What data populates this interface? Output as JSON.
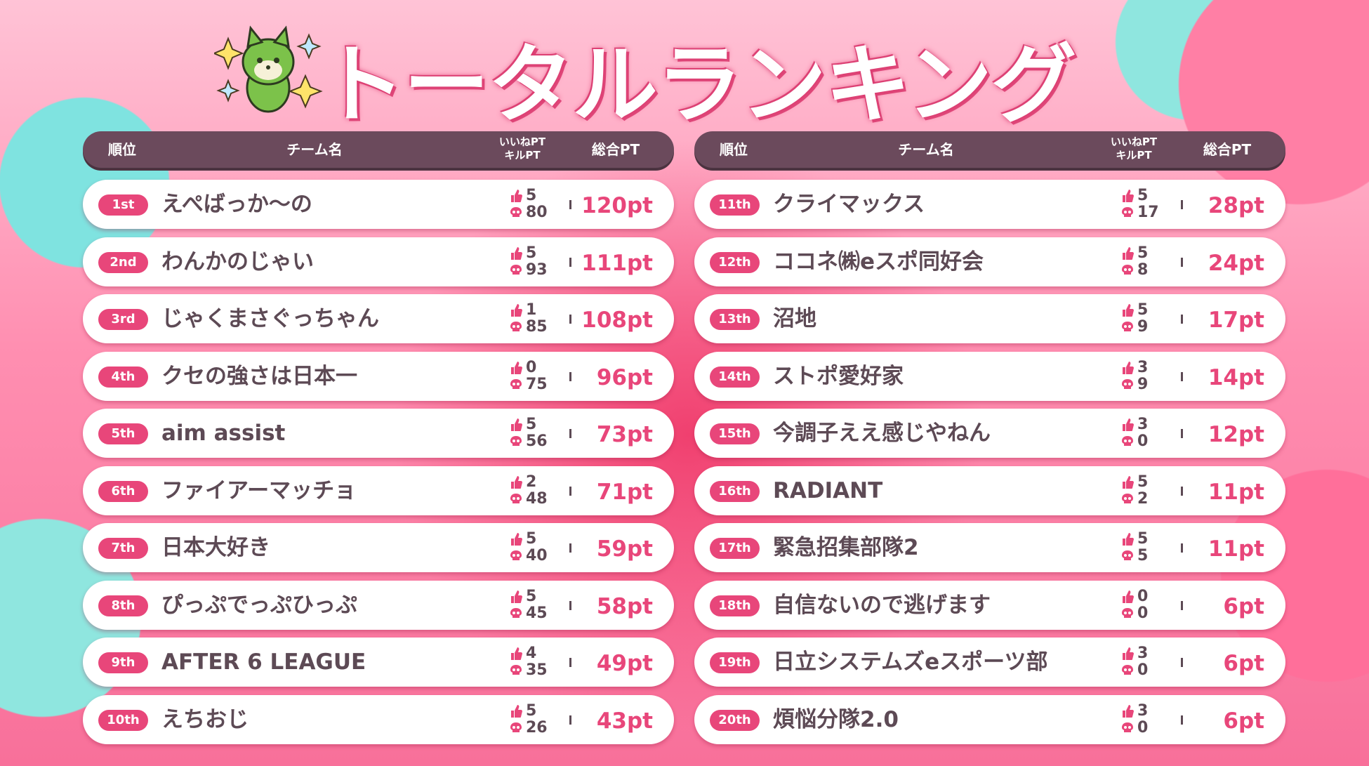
{
  "title": "トータルランキング",
  "header": {
    "rank": "順位",
    "team": "チーム名",
    "like": "いいねPT",
    "kill": "キルPT",
    "total": "総合PT"
  },
  "tables": [
    {
      "rows": [
        [
          "1st",
          "えぺばっか〜の",
          5,
          80,
          "120pt"
        ],
        [
          "2nd",
          "わんかのじゃい",
          5,
          93,
          "111pt"
        ],
        [
          "3rd",
          "じゃくまさぐっちゃん",
          1,
          85,
          "108pt"
        ],
        [
          "4th",
          "クセの強さは日本一",
          0,
          75,
          "96pt"
        ],
        [
          "5th",
          "aim assist",
          5,
          56,
          "73pt"
        ],
        [
          "6th",
          "ファイアーマッチョ",
          2,
          48,
          "71pt"
        ],
        [
          "7th",
          "日本大好き",
          5,
          40,
          "59pt"
        ],
        [
          "8th",
          "ぴっぷでっぷひっぷ",
          5,
          45,
          "58pt"
        ],
        [
          "9th",
          "AFTER 6 LEAGUE",
          4,
          35,
          "49pt"
        ],
        [
          "10th",
          "えちおじ",
          5,
          26,
          "43pt"
        ]
      ]
    },
    {
      "rows": [
        [
          "11th",
          "クライマックス",
          5,
          17,
          "28pt"
        ],
        [
          "12th",
          "ココネ㈱eスポ同好会",
          5,
          8,
          "24pt"
        ],
        [
          "13th",
          "沼地",
          5,
          9,
          "17pt"
        ],
        [
          "14th",
          "ストポ愛好家",
          3,
          9,
          "14pt"
        ],
        [
          "15th",
          "今調子ええ感じやねん",
          3,
          0,
          "12pt"
        ],
        [
          "16th",
          "RADIANT",
          5,
          2,
          "11pt"
        ],
        [
          "17th",
          "緊急招集部隊2",
          5,
          5,
          "11pt"
        ],
        [
          "18th",
          "自信ないので逃げます",
          0,
          0,
          "6pt"
        ],
        [
          "19th",
          "日立システムズeスポーツ部",
          3,
          0,
          "6pt"
        ],
        [
          "20th",
          "煩悩分隊2.0",
          3,
          0,
          "6pt"
        ]
      ]
    }
  ]
}
